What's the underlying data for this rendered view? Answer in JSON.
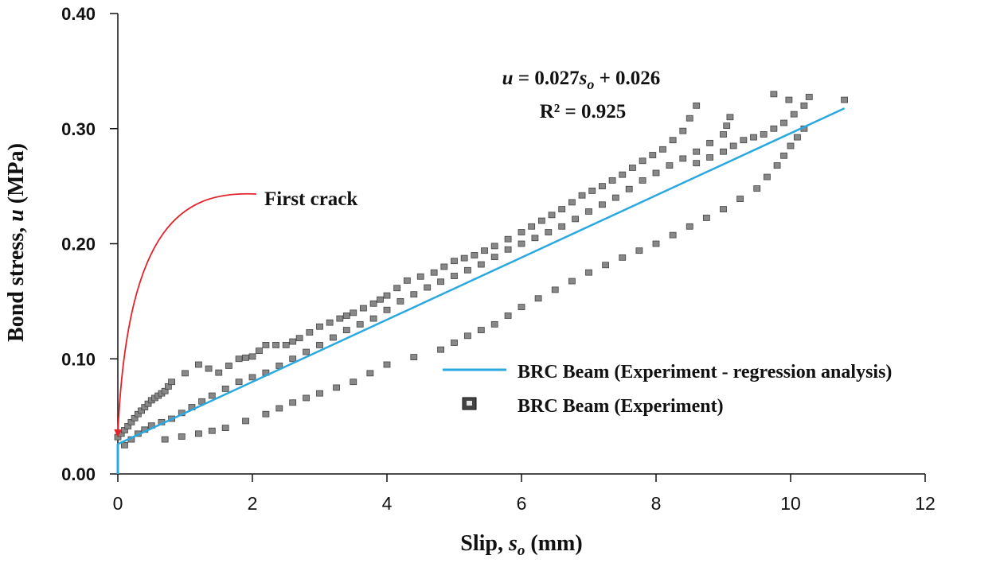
{
  "chart_data": {
    "type": "scatter",
    "xlabel": {
      "main": "Slip, ",
      "var": "s",
      "sub": "o",
      "unit": " (mm)"
    },
    "ylabel": {
      "main": "Bond stress, ",
      "var": "u",
      "unit": " (MPa)"
    },
    "xlim": [
      0,
      12
    ],
    "ylim": [
      0,
      0.4
    ],
    "x_ticks": [
      "0",
      "2",
      "4",
      "6",
      "8",
      "10",
      "12"
    ],
    "y_ticks": [
      "0.00",
      "0.10",
      "0.20",
      "0.30",
      "0.40"
    ],
    "grid": false,
    "legend_position": "right",
    "series": [
      {
        "name": "BRC Beam (Experiment - regression analysis)",
        "type": "line",
        "color": "#2aa9e0",
        "slope": 0.027,
        "intercept": 0.026,
        "x_range": [
          0,
          10.8
        ]
      },
      {
        "name": "BRC Beam (Experiment)",
        "type": "scatter",
        "color": "#888888",
        "curves": [
          [
            [
              0.0,
              0.032
            ],
            [
              0.1,
              0.038
            ],
            [
              0.2,
              0.045
            ],
            [
              0.3,
              0.052
            ],
            [
              0.4,
              0.058
            ],
            [
              0.5,
              0.064
            ],
            [
              0.6,
              0.068
            ],
            [
              0.7,
              0.072
            ],
            [
              0.8,
              0.08
            ],
            [
              1.2,
              0.095
            ],
            [
              1.5,
              0.088
            ],
            [
              1.8,
              0.1
            ],
            [
              2.0,
              0.102
            ],
            [
              2.2,
              0.112
            ],
            [
              2.5,
              0.112
            ],
            [
              2.7,
              0.118
            ],
            [
              3.0,
              0.128
            ],
            [
              3.3,
              0.135
            ],
            [
              3.5,
              0.14
            ],
            [
              3.8,
              0.148
            ],
            [
              4.0,
              0.155
            ],
            [
              4.3,
              0.168
            ],
            [
              4.7,
              0.175
            ],
            [
              5.0,
              0.185
            ],
            [
              5.3,
              0.19
            ],
            [
              5.6,
              0.198
            ],
            [
              6.0,
              0.21
            ],
            [
              6.3,
              0.22
            ],
            [
              6.6,
              0.23
            ],
            [
              6.9,
              0.242
            ],
            [
              7.2,
              0.25
            ],
            [
              7.5,
              0.26
            ],
            [
              7.8,
              0.272
            ],
            [
              8.1,
              0.282
            ],
            [
              8.4,
              0.298
            ],
            [
              8.6,
              0.32
            ]
          ],
          [
            [
              0.1,
              0.025
            ],
            [
              0.3,
              0.035
            ],
            [
              0.5,
              0.042
            ],
            [
              0.8,
              0.048
            ],
            [
              1.1,
              0.058
            ],
            [
              1.4,
              0.068
            ],
            [
              1.8,
              0.08
            ],
            [
              2.2,
              0.088
            ],
            [
              2.6,
              0.1
            ],
            [
              3.0,
              0.112
            ],
            [
              3.4,
              0.125
            ],
            [
              3.8,
              0.135
            ],
            [
              4.2,
              0.15
            ],
            [
              4.6,
              0.162
            ],
            [
              5.0,
              0.172
            ],
            [
              5.4,
              0.182
            ],
            [
              5.8,
              0.195
            ],
            [
              6.2,
              0.205
            ],
            [
              6.6,
              0.215
            ],
            [
              7.0,
              0.228
            ],
            [
              7.4,
              0.24
            ],
            [
              7.8,
              0.255
            ],
            [
              8.2,
              0.268
            ],
            [
              8.6,
              0.28
            ],
            [
              9.0,
              0.295
            ],
            [
              9.1,
              0.31
            ]
          ],
          [
            [
              0.7,
              0.03
            ],
            [
              1.2,
              0.035
            ],
            [
              1.6,
              0.04
            ],
            [
              2.2,
              0.052
            ],
            [
              2.6,
              0.062
            ],
            [
              3.0,
              0.07
            ],
            [
              3.5,
              0.08
            ],
            [
              4.0,
              0.095
            ],
            [
              4.8,
              0.108
            ],
            [
              5.2,
              0.12
            ],
            [
              5.6,
              0.13
            ],
            [
              6.0,
              0.145
            ],
            [
              6.5,
              0.16
            ],
            [
              7.0,
              0.175
            ],
            [
              7.5,
              0.188
            ],
            [
              8.0,
              0.2
            ],
            [
              8.5,
              0.215
            ],
            [
              9.0,
              0.23
            ],
            [
              9.5,
              0.248
            ],
            [
              9.8,
              0.268
            ],
            [
              10.0,
              0.285
            ],
            [
              10.2,
              0.3
            ]
          ],
          [
            [
              8.6,
              0.27
            ],
            [
              9.0,
              0.28
            ],
            [
              9.3,
              0.29
            ],
            [
              9.6,
              0.295
            ],
            [
              9.9,
              0.305
            ],
            [
              10.2,
              0.32
            ],
            [
              9.75,
              0.33
            ],
            [
              10.8,
              0.325
            ]
          ]
        ]
      }
    ],
    "annotations": {
      "equation": {
        "u": "u",
        "mid": " = 0.027",
        "s": "s",
        "sub": "o",
        "tail": " + 0.026"
      },
      "r_squared": "R² = 0.925",
      "first_crack": "First crack"
    }
  }
}
